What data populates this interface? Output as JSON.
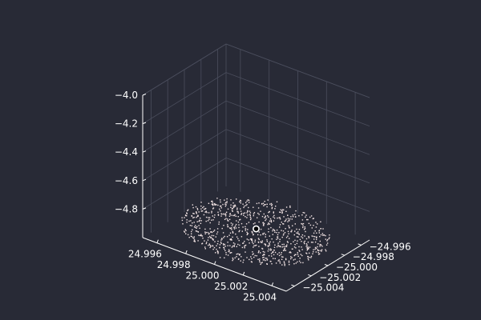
{
  "colors": {
    "background": "#282a36",
    "grid": "#4a4d5c",
    "axis": "#ffffff",
    "points": "#f3e4e4",
    "marker": "#000000",
    "marker_edge": "#ffffff"
  },
  "chart_data": {
    "type": "scatter",
    "projection": "3d",
    "title": "",
    "xlabel": "",
    "ylabel": "",
    "zlabel": "",
    "legend": "none",
    "grid": true,
    "axes": {
      "x": {
        "range": [
          24.995,
          25.005
        ],
        "ticks": [
          24.996,
          24.998,
          25.0,
          25.002,
          25.004
        ],
        "tick_labels": [
          "24.996",
          "24.998",
          "25.000",
          "25.002",
          "25.004"
        ]
      },
      "y": {
        "range": [
          -25.005,
          -24.995
        ],
        "ticks": [
          -24.996,
          -24.998,
          -25.0,
          -25.002,
          -25.004
        ],
        "tick_labels": [
          "−24.996",
          "−24.998",
          "−25.000",
          "−25.002",
          "−25.004"
        ]
      },
      "z": {
        "range": [
          -5.0,
          -4.0
        ],
        "ticks": [
          -4.0,
          -4.2,
          -4.4,
          -4.6,
          -4.8
        ],
        "tick_labels": [
          "−4.0",
          "−4.2",
          "−4.4",
          "−4.6",
          "−4.8"
        ]
      }
    },
    "series": [
      {
        "kind": "cloud",
        "count": 900,
        "center": [
          25.0,
          -25.0,
          -4.95
        ],
        "radius": 0.0045,
        "marker": "point"
      },
      {
        "kind": "marker",
        "x": 25.0,
        "y": -25.0,
        "z": -4.93,
        "marker": "circle"
      }
    ]
  }
}
